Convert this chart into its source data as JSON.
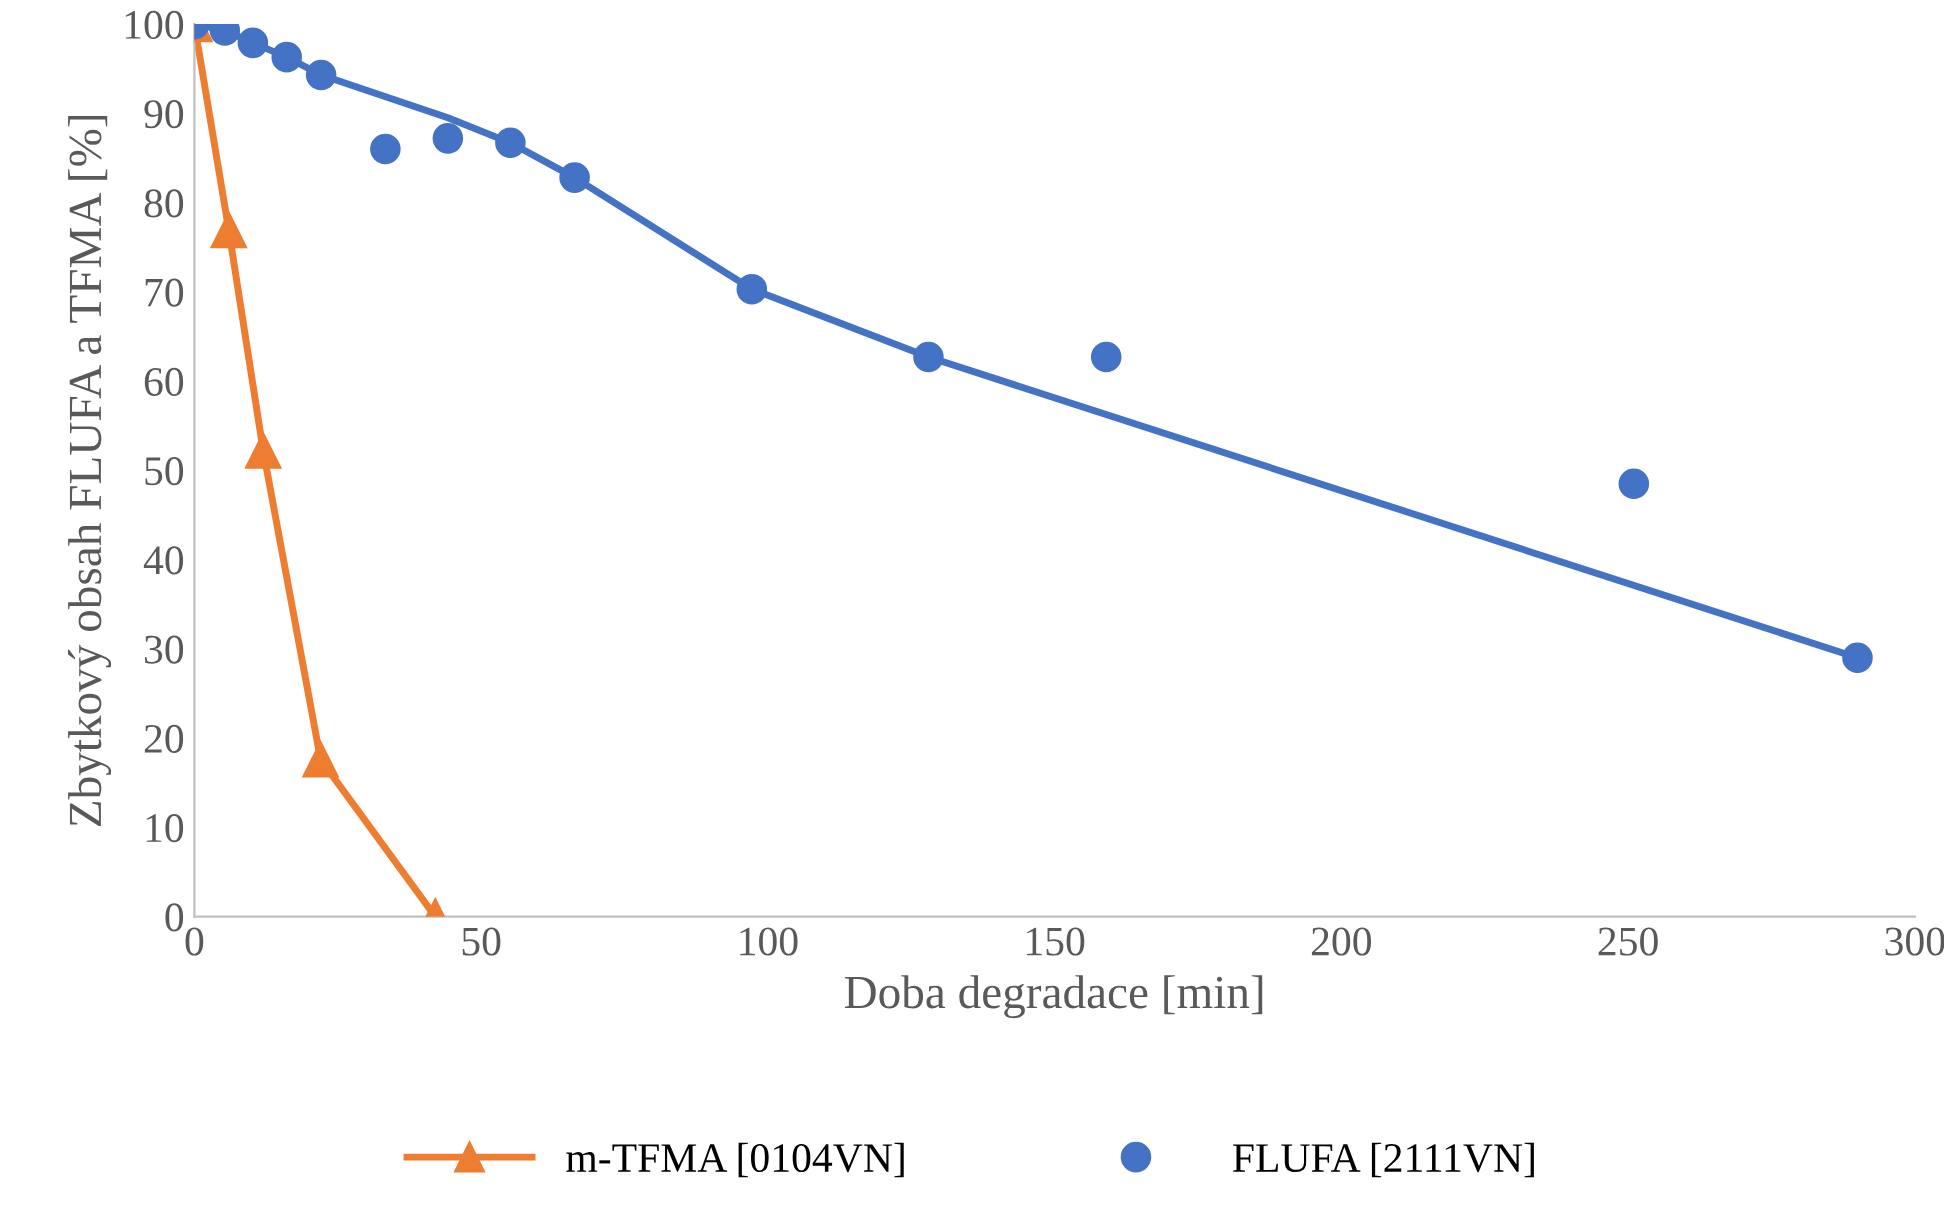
{
  "chart_data": {
    "type": "line",
    "xlabel": "Doba degradace [min]",
    "ylabel": "Zbytkový obsah FLUFA a TFMA [%]",
    "series": [
      {
        "name": "m-TFMA [0104VN]",
        "color": "#ed7d31",
        "marker": "triangle",
        "x": [
          0,
          6,
          12,
          22,
          42
        ],
        "values": [
          100,
          76.9,
          52.2,
          17.6,
          0
        ]
      },
      {
        "name": "FLUFA [2111VN]",
        "type": "scatter",
        "color": "#4472c4",
        "marker": "circle",
        "x": [
          0,
          5.3,
          10.2,
          16.1,
          22.1,
          33.3,
          44.2,
          55.1,
          66.3,
          97.2,
          128,
          159,
          251,
          290
        ],
        "values": [
          100,
          99.3,
          97.9,
          96.3,
          94.3,
          86.0,
          87.2,
          86.7,
          82.8,
          70.3,
          62.7,
          62.7,
          48.5,
          29
        ]
      },
      {
        "color": "#4472c4",
        "marker": "none",
        "x": [
          0,
          5.3,
          10.2,
          16.1,
          22.1,
          44.2,
          55.1,
          66.3,
          97.2,
          128,
          290
        ],
        "values": [
          100,
          99.3,
          97.9,
          96.3,
          94.3,
          89.5,
          86.7,
          82.8,
          70.3,
          62.7,
          29
        ]
      }
    ],
    "xlim": [
      0,
      300
    ],
    "xticks": [
      0,
      50,
      100,
      150,
      200,
      250,
      300
    ],
    "ylim": [
      0,
      100
    ],
    "yticks": [
      0,
      10,
      20,
      30,
      40,
      50,
      60,
      70,
      80,
      90,
      100
    ],
    "grid": false,
    "legend": "bottom"
  }
}
